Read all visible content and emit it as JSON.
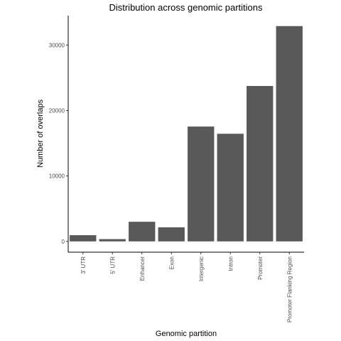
{
  "chart_data": {
    "type": "bar",
    "title": "Distribution across genomic partitions",
    "xlabel": "Genomic partition",
    "ylabel": "Number of overlaps",
    "categories": [
      "3' UTR",
      "5' UTR",
      "Enhancer",
      "Exon",
      "Intergenic",
      "Intron",
      "Promoter",
      "Promoter Flanking Region"
    ],
    "values": [
      950,
      350,
      3000,
      2150,
      17550,
      16450,
      23750,
      32900
    ],
    "yticks": [
      0,
      10000,
      20000,
      30000
    ],
    "ylim": [
      -1650,
      34500
    ],
    "grid": false,
    "legend": "none",
    "bar_color": "#595959"
  }
}
